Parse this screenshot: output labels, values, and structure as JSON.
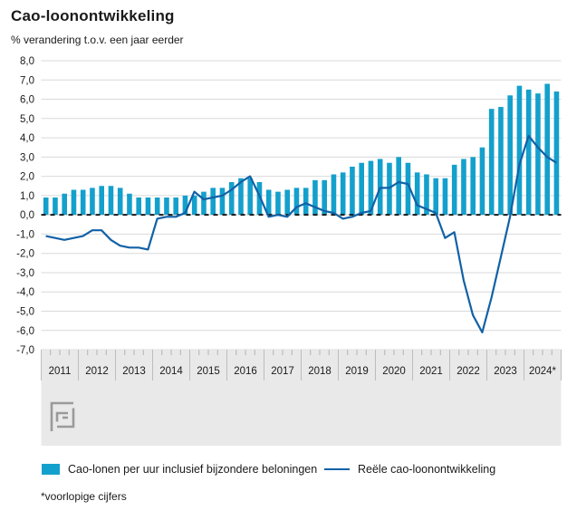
{
  "title": "Cao-loonontwikkeling",
  "subtitle": "% verandering t.o.v. een jaar eerder",
  "footnote": "*voorlopige cijfers",
  "colors": {
    "bar": "#14a0cc",
    "line": "#1161a6",
    "grid": "#d9d9d9",
    "zero_line": "#1a1a1a",
    "axis_band": "#e9e9e9",
    "band_separator": "#bdbdbd",
    "tick": "#b3b3b3",
    "logo": "#9a9a9a",
    "text": "#1a1a1a"
  },
  "legend": [
    {
      "label": "Cao-lonen per uur inclusief bijzondere beloningen",
      "type": "bar"
    },
    {
      "label": "Reële cao-loonontwikkeling",
      "type": "line"
    }
  ],
  "chart_data": {
    "type": "bar",
    "subtype": "bar-with-line-overlay",
    "title": "Cao-loonontwikkeling",
    "xlabel": "",
    "ylabel": "% verandering t.o.v. een jaar eerder",
    "ylim": [
      -7.0,
      8.0
    ],
    "ytick_step": 1.0,
    "ytick_decimal": "comma",
    "grid": true,
    "zero_line": "dashed-black",
    "legend_position": "bottom",
    "categories": [
      "2011",
      "2012",
      "2013",
      "2014",
      "2015",
      "2016",
      "2017",
      "2018",
      "2019",
      "2020",
      "2021",
      "2022",
      "2023",
      "2024*"
    ],
    "quarters_per_year": 4,
    "series": [
      {
        "name": "Cao-lonen per uur inclusief bijzondere beloningen",
        "type": "bar",
        "values": [
          0.9,
          0.9,
          1.1,
          1.3,
          1.3,
          1.4,
          1.5,
          1.5,
          1.4,
          1.1,
          0.9,
          0.9,
          0.9,
          0.9,
          0.9,
          1.0,
          1.0,
          1.2,
          1.4,
          1.4,
          1.7,
          1.9,
          1.9,
          1.7,
          1.3,
          1.2,
          1.3,
          1.4,
          1.4,
          1.8,
          1.8,
          2.1,
          2.2,
          2.5,
          2.7,
          2.8,
          2.9,
          2.7,
          3.0,
          2.7,
          2.2,
          2.1,
          1.9,
          1.9,
          2.6,
          2.9,
          3.0,
          3.5,
          5.5,
          5.6,
          6.2,
          6.7,
          6.5,
          6.3,
          6.8,
          6.4
        ]
      },
      {
        "name": "Reële cao-loonontwikkeling",
        "type": "line",
        "values": [
          -1.1,
          -1.2,
          -1.3,
          -1.2,
          -1.1,
          -0.8,
          -0.8,
          -1.3,
          -1.6,
          -1.7,
          -1.7,
          -1.8,
          -0.2,
          -0.1,
          -0.1,
          0.1,
          1.2,
          0.8,
          0.9,
          1.0,
          1.3,
          1.7,
          2.0,
          1.0,
          -0.1,
          0.0,
          -0.1,
          0.4,
          0.6,
          0.4,
          0.2,
          0.1,
          -0.2,
          -0.1,
          0.1,
          0.2,
          1.4,
          1.4,
          1.7,
          1.6,
          0.5,
          0.3,
          0.1,
          -1.2,
          -0.9,
          -3.4,
          -5.2,
          -6.1,
          -4.3,
          -2.2,
          -0.1,
          2.6,
          4.1,
          3.5,
          3.0,
          2.7
        ]
      }
    ]
  }
}
